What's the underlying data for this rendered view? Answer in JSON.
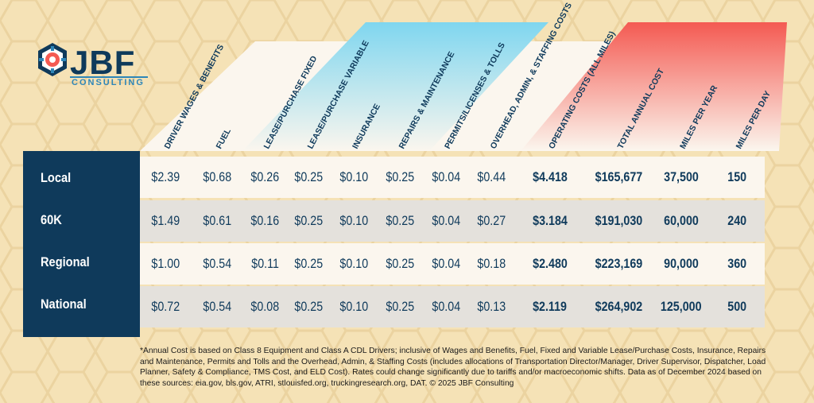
{
  "brand": {
    "name": "JBF",
    "sub": "CONSULTING"
  },
  "colors": {
    "navy": "#0f3a5b",
    "blue_accent": "#7fd6ef",
    "red_accent": "#f45a52",
    "background": "#f5e2b6"
  },
  "chart_data": {
    "type": "table",
    "columns": [
      "DRIVER WAGES & BENEFITS",
      "FUEL",
      "LEASE/PURCHASE FIXED",
      "LEASE/PURCHASE VARIABLE",
      "INSURANCE",
      "REPAIRS & MAINTENANCE",
      "PERMITS/LICENSES & TOLLS",
      "OVERHEAD, ADMIN, & STAFFING COSTS",
      "OPERATING COSTS (ALL MILES)",
      "TOTAL ANNUAL COST",
      "MILES PER YEAR",
      "MILES PER DAY"
    ],
    "rows": [
      {
        "label": "Local",
        "values": [
          "$2.39",
          "$0.68",
          "$0.26",
          "$0.25",
          "$0.10",
          "$0.25",
          "$0.04",
          "$0.44",
          "$4.418",
          "$165,677",
          "37,500",
          "150"
        ]
      },
      {
        "label": "60K",
        "values": [
          "$1.49",
          "$0.61",
          "$0.16",
          "$0.25",
          "$0.10",
          "$0.25",
          "$0.04",
          "$0.27",
          "$3.184",
          "$191,030",
          "60,000",
          "240"
        ]
      },
      {
        "label": "Regional",
        "values": [
          "$1.00",
          "$0.54",
          "$0.11",
          "$0.25",
          "$0.10",
          "$0.25",
          "$0.04",
          "$0.18",
          "$2.480",
          "$223,169",
          "90,000",
          "360"
        ]
      },
      {
        "label": "National",
        "values": [
          "$0.72",
          "$0.54",
          "$0.08",
          "$0.25",
          "$0.10",
          "$0.25",
          "$0.04",
          "$0.13",
          "$2.119",
          "$264,902",
          "125,000",
          "500"
        ]
      }
    ]
  },
  "footnote": "*Annual Cost is based on Class 8 Equipment and Class A CDL Drivers; inclusive of Wages and Benefits, Fuel, Fixed and Variable Lease/Purchase Costs, Insurance, Repairs and Maintenance, Permits and Tolls and the Overhead, Admin, & Staffing Costs (includes allocations of Transportation Director/Manager, Driver Supervisor, Dispatcher, Load Planner, Safety & Compliance, TMS Cost, and ELD Cost). Rates could change significantly due to tariffs and/or macroeconomic shifts. Data as of December 2024 based on these sources: eia.gov, bls.gov, ATRI, stlouisfed.org, truckingresearch.org, DAT. © 2025 JBF Consulting"
}
